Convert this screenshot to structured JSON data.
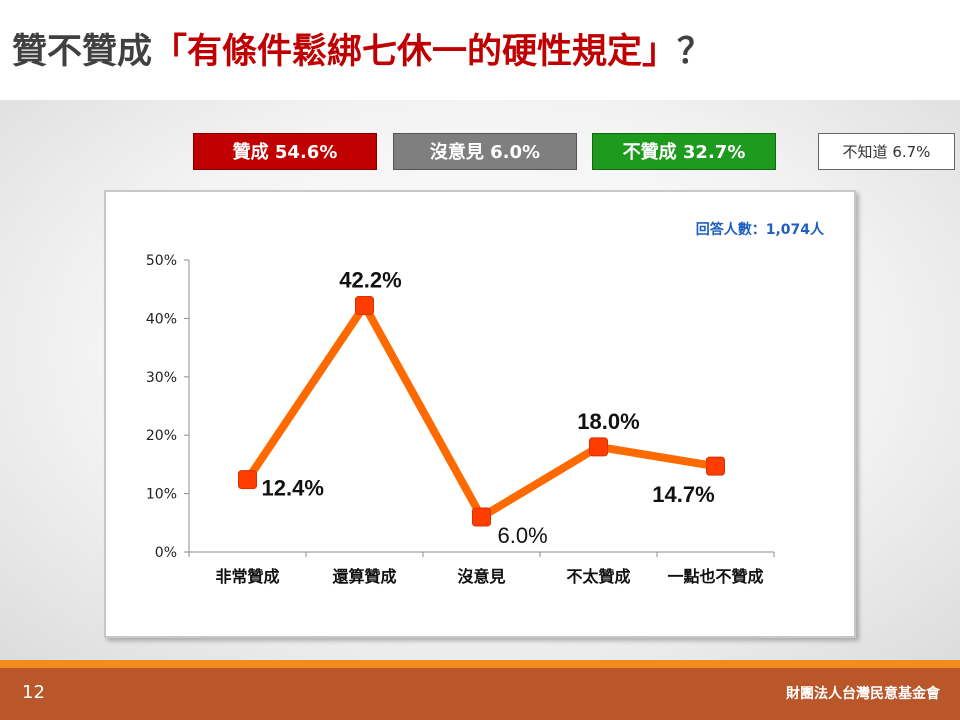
{
  "title": {
    "main": "贊不贊成",
    "quoted": "「有條件鬆綁七休一的硬性規定」",
    "end": "？"
  },
  "legend": {
    "agree": "贊成 54.6%",
    "neutral": "沒意見 6.0%",
    "disagree": "不贊成 32.7%",
    "unknown": "不知道 6.7%"
  },
  "colors": {
    "agree": "#c00000",
    "neutral": "#7f7f7f",
    "disagree": "#1e9a1e",
    "line": "#ff6a00",
    "marker": "#ff3d00",
    "respondents": "#1f5fbf",
    "footer": "#b9562a",
    "footer_stripe": "#f28c1e"
  },
  "chart_data": {
    "type": "line",
    "categories": [
      "非常贊成",
      "還算贊成",
      "沒意見",
      "不太贊成",
      "一點也不贊成"
    ],
    "values": [
      12.4,
      42.2,
      6.0,
      18.0,
      14.7
    ],
    "data_labels": [
      "12.4%",
      "42.2%",
      "6.0%",
      "18.0%",
      "14.7%"
    ],
    "yticks": [
      "0%",
      "10%",
      "20%",
      "30%",
      "40%",
      "50%"
    ],
    "ylim": [
      0,
      50
    ],
    "respondents": "回答人數：1,074人",
    "grid": false,
    "legend": "none"
  },
  "footer": {
    "page_number": "12",
    "organization": "財團法人台灣民意基金會"
  }
}
